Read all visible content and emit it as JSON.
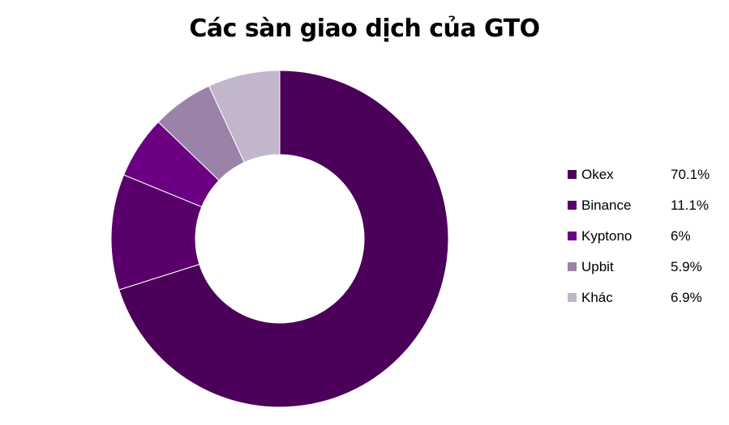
{
  "chart_data": {
    "type": "pie",
    "title": "Các sàn giao dịch của GTO",
    "legend_position": "right",
    "series": [
      {
        "name": "Okex",
        "value": 70.1,
        "label": "70.1%",
        "color": "#4b0059"
      },
      {
        "name": "Binance",
        "value": 11.1,
        "label": "11.1%",
        "color": "#5a006b"
      },
      {
        "name": "Kyptono",
        "value": 6,
        "label": "6%",
        "color": "#6b0082"
      },
      {
        "name": "Upbit",
        "value": 5.9,
        "label": "5.9%",
        "color": "#9a82a8"
      },
      {
        "name": "Khác",
        "value": 6.9,
        "label": "6.9%",
        "color": "#c2b6cc"
      }
    ]
  }
}
